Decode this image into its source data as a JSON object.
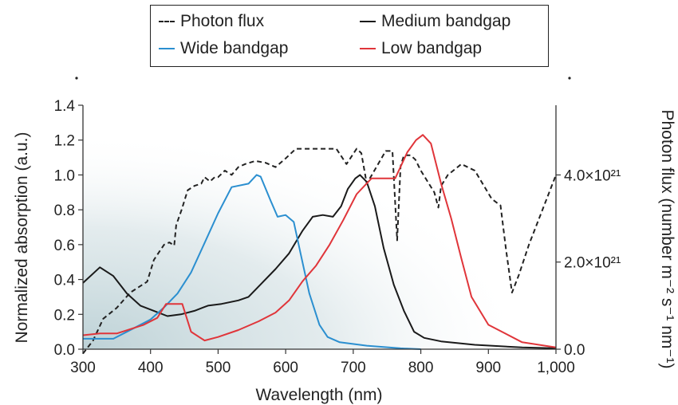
{
  "chart_data": {
    "type": "line",
    "xlabel": "Wavelength (nm)",
    "ylabel_left": "Normalized absorption (a.u.)",
    "ylabel_right": "Photon flux (number m⁻² s⁻¹ nm⁻¹)",
    "xlim": [
      300,
      1000
    ],
    "ylim_left": [
      0,
      1.4
    ],
    "ylim_right": [
      0,
      5.6e+21
    ],
    "x_ticks": [
      "300",
      "400",
      "500",
      "600",
      "700",
      "800",
      "900",
      "1,000"
    ],
    "x_tick_values": [
      300,
      400,
      500,
      600,
      700,
      800,
      900,
      1000
    ],
    "y_left_ticks": [
      "0.0",
      "0.2",
      "0.4",
      "0.6",
      "0.8",
      "1.0",
      "1.2",
      "1.4"
    ],
    "y_left_tick_values": [
      0,
      0.2,
      0.4,
      0.6,
      0.8,
      1.0,
      1.2,
      1.4
    ],
    "y_right_ticks": [
      "0.0",
      "2.0×10²¹",
      "4.0×10²¹"
    ],
    "y_right_tick_values": [
      0,
      2e+21,
      4e+21
    ],
    "legend_position": "top",
    "grid": false,
    "series": [
      {
        "name": "Photon flux",
        "axis": "right",
        "style": "dashed",
        "color": "#222222",
        "x": [
          300,
          315,
          330,
          350,
          370,
          395,
          405,
          420,
          428,
          435,
          438,
          446,
          455,
          465,
          475,
          480,
          488,
          495,
          500,
          510,
          520,
          530,
          540,
          555,
          570,
          585,
          600,
          615,
          630,
          650,
          675,
          690,
          705,
          712,
          720,
          735,
          748,
          758,
          765,
          770,
          775,
          785,
          792,
          800,
          810,
          820,
          826,
          830,
          840,
          860,
          880,
          905,
          918,
          926,
          935,
          945,
          960,
          980,
          1000
        ],
        "y": [
          -1e+20,
          2e+20,
          7e+20,
          9.5e+20,
          1.3e+21,
          1.55e+21,
          2.05e+21,
          2.4e+21,
          2.45e+21,
          2.38e+21,
          2.85e+21,
          3.2e+21,
          3.65e+21,
          3.75e+21,
          3.8e+21,
          3.95e+21,
          3.85e+21,
          3.95e+21,
          3.95e+21,
          4.1e+21,
          4e+21,
          4.18e+21,
          4.25e+21,
          4.32e+21,
          4.28e+21,
          4.18e+21,
          4.38e+21,
          4.6e+21,
          4.6e+21,
          4.6e+21,
          4.6e+21,
          4.25e+21,
          4.6e+21,
          4.5e+21,
          3.8e+21,
          4.2e+21,
          4.55e+21,
          4.55e+21,
          2.5e+21,
          4.2e+21,
          4.45e+21,
          4.45e+21,
          4.35e+21,
          4.1e+21,
          3.85e+21,
          3.6e+21,
          3.25e+21,
          3.75e+21,
          4e+21,
          4.25e+21,
          4.1e+21,
          3.45e+21,
          3.3e+21,
          2.3e+21,
          1.3e+21,
          1.7e+21,
          2.4e+21,
          3.2e+21,
          4e+21
        ]
      },
      {
        "name": "Medium bandgap",
        "axis": "left",
        "style": "solid",
        "color": "#1a1a1a",
        "x": [
          300,
          325,
          345,
          365,
          385,
          405,
          425,
          445,
          465,
          485,
          505,
          530,
          545,
          565,
          585,
          605,
          625,
          640,
          655,
          670,
          682,
          692,
          703,
          710,
          720,
          732,
          745,
          760,
          775,
          790,
          805,
          830,
          880,
          950,
          1000
        ],
        "y": [
          0.38,
          0.47,
          0.42,
          0.32,
          0.25,
          0.22,
          0.19,
          0.2,
          0.22,
          0.25,
          0.26,
          0.28,
          0.3,
          0.38,
          0.46,
          0.55,
          0.68,
          0.76,
          0.77,
          0.76,
          0.82,
          0.92,
          0.98,
          1.0,
          0.96,
          0.82,
          0.58,
          0.37,
          0.22,
          0.1,
          0.065,
          0.045,
          0.025,
          0.01,
          0.005
        ]
      },
      {
        "name": "Wide bandgap",
        "axis": "left",
        "style": "solid",
        "color": "#2b8fd0",
        "x": [
          300,
          320,
          345,
          375,
          400,
          420,
          440,
          460,
          480,
          500,
          520,
          545,
          557,
          563,
          578,
          588,
          600,
          612,
          622,
          635,
          650,
          662,
          680,
          720,
          770,
          800
        ],
        "y": [
          0.06,
          0.06,
          0.06,
          0.12,
          0.17,
          0.24,
          0.32,
          0.44,
          0.61,
          0.78,
          0.93,
          0.95,
          1.0,
          0.99,
          0.85,
          0.76,
          0.77,
          0.73,
          0.55,
          0.32,
          0.14,
          0.07,
          0.04,
          0.02,
          0.005,
          0.0
        ]
      },
      {
        "name": "Low bandgap",
        "axis": "left",
        "style": "solid",
        "color": "#e0353a",
        "x": [
          300,
          325,
          350,
          390,
          410,
          423,
          440,
          447,
          460,
          480,
          500,
          530,
          560,
          585,
          605,
          625,
          645,
          665,
          685,
          705,
          727,
          740,
          762,
          780,
          793,
          803,
          815,
          830,
          845,
          860,
          875,
          900,
          950,
          1000
        ],
        "y": [
          0.08,
          0.09,
          0.09,
          0.14,
          0.18,
          0.26,
          0.26,
          0.26,
          0.1,
          0.05,
          0.07,
          0.11,
          0.16,
          0.21,
          0.28,
          0.39,
          0.48,
          0.6,
          0.74,
          0.89,
          0.98,
          0.98,
          0.98,
          1.13,
          1.2,
          1.23,
          1.18,
          0.95,
          0.75,
          0.52,
          0.3,
          0.14,
          0.04,
          0.01
        ]
      }
    ]
  },
  "legend": {
    "items": [
      {
        "label": "Photon flux",
        "color": "#222222",
        "style": "dashed"
      },
      {
        "label": "Medium bandgap",
        "color": "#1a1a1a",
        "style": "solid"
      },
      {
        "label": "Wide bandgap",
        "color": "#2b8fd0",
        "style": "solid"
      },
      {
        "label": "Low bandgap",
        "color": "#e0353a",
        "style": "solid"
      }
    ]
  }
}
